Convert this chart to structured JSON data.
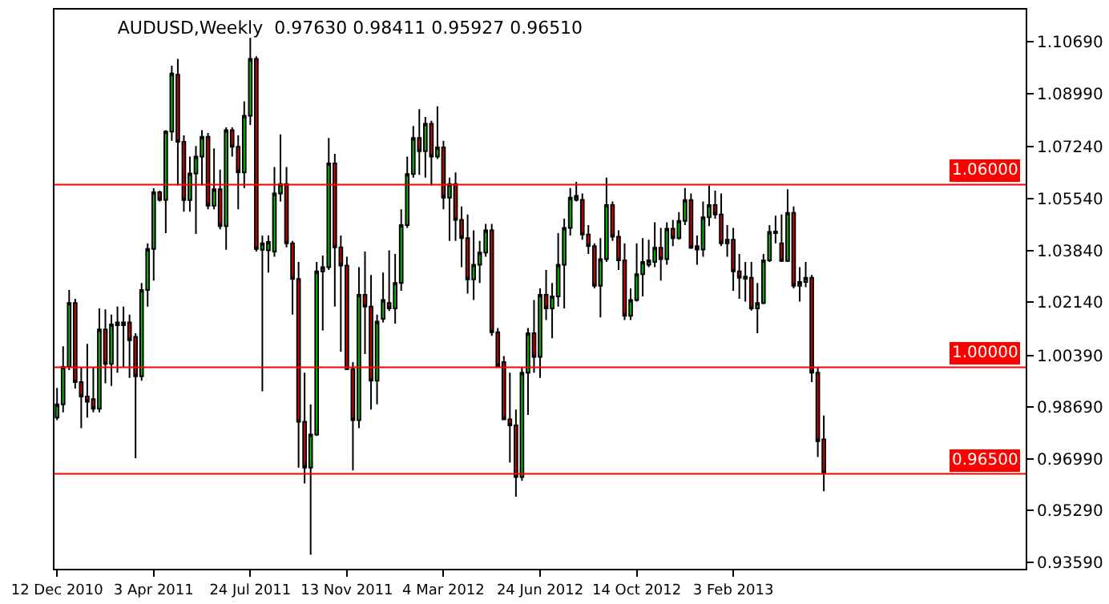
{
  "chart_data": {
    "type": "candlestick",
    "title": "AUDUSD,Weekly  0.97630 0.98411 0.95927 0.96510",
    "x": [
      "2010-12-12",
      "2010-12-19",
      "2010-12-26",
      "2011-01-02",
      "2011-01-09",
      "2011-01-16",
      "2011-01-23",
      "2011-01-30",
      "2011-02-06",
      "2011-02-13",
      "2011-02-20",
      "2011-02-27",
      "2011-03-06",
      "2011-03-13",
      "2011-03-20",
      "2011-03-27",
      "2011-04-03",
      "2011-04-10",
      "2011-04-17",
      "2011-04-24",
      "2011-05-01",
      "2011-05-08",
      "2011-05-15",
      "2011-05-22",
      "2011-05-29",
      "2011-06-05",
      "2011-06-12",
      "2011-06-19",
      "2011-06-26",
      "2011-07-03",
      "2011-07-10",
      "2011-07-17",
      "2011-07-24",
      "2011-07-31",
      "2011-08-07",
      "2011-08-14",
      "2011-08-21",
      "2011-08-28",
      "2011-09-04",
      "2011-09-11",
      "2011-09-18",
      "2011-09-25",
      "2011-10-02",
      "2011-10-09",
      "2011-10-16",
      "2011-10-23",
      "2011-10-30",
      "2011-11-06",
      "2011-11-13",
      "2011-11-20",
      "2011-11-27",
      "2011-12-04",
      "2011-12-11",
      "2011-12-18",
      "2011-12-25",
      "2012-01-01",
      "2012-01-08",
      "2012-01-15",
      "2012-01-22",
      "2012-01-29",
      "2012-02-05",
      "2012-02-12",
      "2012-02-19",
      "2012-02-26",
      "2012-03-04",
      "2012-03-11",
      "2012-03-18",
      "2012-03-25",
      "2012-04-01",
      "2012-04-08",
      "2012-04-15",
      "2012-04-22",
      "2012-04-29",
      "2012-05-06",
      "2012-05-13",
      "2012-05-20",
      "2012-05-27",
      "2012-06-03",
      "2012-06-10",
      "2012-06-17",
      "2012-06-24",
      "2012-07-01",
      "2012-07-08",
      "2012-07-15",
      "2012-07-22",
      "2012-07-29",
      "2012-08-05",
      "2012-08-12",
      "2012-08-19",
      "2012-08-26",
      "2012-09-02",
      "2012-09-09",
      "2012-09-16",
      "2012-09-23",
      "2012-09-30",
      "2012-10-07",
      "2012-10-14",
      "2012-10-21",
      "2012-10-28",
      "2012-11-04",
      "2012-11-11",
      "2012-11-18",
      "2012-11-25",
      "2012-12-02",
      "2012-12-09",
      "2012-12-16",
      "2012-12-23",
      "2012-12-30",
      "2013-01-06",
      "2013-01-13",
      "2013-01-20",
      "2013-01-27",
      "2013-02-03",
      "2013-02-10",
      "2013-02-17",
      "2013-02-24",
      "2013-03-03",
      "2013-03-10",
      "2013-03-17",
      "2013-03-24",
      "2013-03-31",
      "2013-04-07",
      "2013-04-14",
      "2013-04-21",
      "2013-04-28",
      "2013-05-05",
      "2013-05-12",
      "2013-05-19"
    ],
    "ohlc": [
      [
        0.9835,
        0.9932,
        0.9826,
        0.9878
      ],
      [
        0.9878,
        1.0069,
        0.9852,
        1.0001
      ],
      [
        1.0001,
        1.0254,
        0.9991,
        1.0211
      ],
      [
        1.0211,
        1.0225,
        0.993,
        0.9951
      ],
      [
        0.9951,
        1.0001,
        0.98,
        0.9904
      ],
      [
        0.9904,
        1.0077,
        0.9835,
        0.9887
      ],
      [
        0.9895,
        1.0001,
        0.9852,
        0.9864
      ],
      [
        0.9864,
        1.0193,
        0.9852,
        1.0124
      ],
      [
        1.0124,
        1.019,
        0.9947,
        1.0011
      ],
      [
        1.0011,
        1.0173,
        0.9939,
        1.0141
      ],
      [
        1.0138,
        1.0199,
        0.9982,
        1.0147
      ],
      [
        1.0147,
        1.0199,
        1.0001,
        1.0138
      ],
      [
        1.0147,
        1.0173,
        0.9965,
        1.0089
      ],
      [
        1.01,
        1.0112,
        0.9701,
        0.997
      ],
      [
        0.997,
        1.0277,
        0.9956,
        1.0254
      ],
      [
        1.0254,
        1.0407,
        1.0199,
        1.0389
      ],
      [
        1.0389,
        1.0588,
        1.0285,
        1.0575
      ],
      [
        1.0575,
        1.058,
        1.0545,
        1.055
      ],
      [
        1.055,
        1.0779,
        1.0441,
        1.0774
      ],
      [
        1.0774,
        1.0991,
        1.0744,
        1.0965
      ],
      [
        1.0961,
        1.1013,
        1.0597,
        1.0741
      ],
      [
        1.0741,
        1.0762,
        1.0511,
        1.0549
      ],
      [
        1.0549,
        1.0692,
        1.0511,
        1.0637
      ],
      [
        1.0637,
        1.0727,
        1.0438,
        1.0692
      ],
      [
        1.0692,
        1.0779,
        1.0597,
        1.0757
      ],
      [
        1.0757,
        1.077,
        1.0519,
        1.0531
      ],
      [
        1.0531,
        1.0719,
        1.0519,
        1.0585
      ],
      [
        1.0585,
        1.0649,
        1.0453,
        1.0464
      ],
      [
        1.0464,
        1.0788,
        1.0386,
        1.0779
      ],
      [
        1.0779,
        1.0788,
        1.0692,
        1.0724
      ],
      [
        1.0724,
        1.0762,
        1.0519,
        1.064
      ],
      [
        1.064,
        1.0874,
        1.0589,
        1.0826
      ],
      [
        1.0826,
        1.1082,
        1.0796,
        1.1013
      ],
      [
        1.1013,
        1.1022,
        1.038,
        1.0389
      ],
      [
        1.0386,
        1.0433,
        0.9921,
        1.0407
      ],
      [
        1.0384,
        1.0433,
        1.0311,
        1.0412
      ],
      [
        1.038,
        1.0658,
        1.0363,
        1.0571
      ],
      [
        1.0571,
        1.0765,
        1.0545,
        1.0602
      ],
      [
        1.0602,
        1.0658,
        1.0394,
        1.0407
      ],
      [
        1.0407,
        1.0415,
        1.0173,
        1.029
      ],
      [
        1.029,
        1.0346,
        0.967,
        0.9821
      ],
      [
        0.9821,
        0.9982,
        0.9618,
        0.967
      ],
      [
        0.967,
        0.9878,
        0.9384,
        0.9779
      ],
      [
        0.9779,
        1.0346,
        0.9774,
        1.0315
      ],
      [
        1.0315,
        1.0367,
        1.0121,
        1.0329
      ],
      [
        1.0329,
        1.0753,
        1.032,
        1.067
      ],
      [
        1.067,
        1.0701,
        1.0199,
        1.0394
      ],
      [
        1.0394,
        1.0433,
        1.0051,
        1.0334
      ],
      [
        1.0334,
        1.0363,
        0.9991,
        0.9994
      ],
      [
        0.9994,
        1.0017,
        0.9661,
        0.9826
      ],
      [
        0.9826,
        1.0329,
        0.98,
        1.0238
      ],
      [
        1.0238,
        1.038,
        1.0043,
        1.0199
      ],
      [
        1.0199,
        1.0303,
        0.9861,
        0.9956
      ],
      [
        0.9956,
        1.0173,
        0.9878,
        1.015
      ],
      [
        1.0159,
        1.0311,
        1.0147,
        1.0221
      ],
      [
        1.0211,
        1.0384,
        1.0185,
        1.0193
      ],
      [
        1.0193,
        1.0372,
        1.0143,
        1.0277
      ],
      [
        1.0277,
        1.0519,
        1.0251,
        1.0467
      ],
      [
        1.0467,
        1.0692,
        1.0458,
        1.0635
      ],
      [
        1.0635,
        1.0793,
        1.0623,
        1.0753
      ],
      [
        1.0753,
        1.0848,
        1.0632,
        1.071
      ],
      [
        1.071,
        1.0822,
        1.0623,
        1.08
      ],
      [
        1.08,
        1.081,
        1.0597,
        1.0692
      ],
      [
        1.0692,
        1.0857,
        1.0684,
        1.0722
      ],
      [
        1.0722,
        1.0744,
        1.0519,
        1.0557
      ],
      [
        1.0557,
        1.0623,
        1.0415,
        1.0602
      ],
      [
        1.0602,
        1.064,
        1.0415,
        1.0484
      ],
      [
        1.0484,
        1.0528,
        1.0329,
        1.0424
      ],
      [
        1.0424,
        1.0502,
        1.0242,
        1.0289
      ],
      [
        1.0289,
        1.045,
        1.0221,
        1.0337
      ],
      [
        1.0337,
        1.0415,
        1.0277,
        1.0377
      ],
      [
        1.0377,
        1.0471,
        1.0363,
        1.045
      ],
      [
        1.045,
        1.0471,
        1.0103,
        1.0115
      ],
      [
        1.0115,
        1.0129,
        0.9999,
        1.0003
      ],
      [
        1.0017,
        1.0037,
        0.9826,
        0.9829
      ],
      [
        0.9829,
        0.9982,
        0.9687,
        0.9809
      ],
      [
        0.9809,
        0.9861,
        0.9575,
        0.9639
      ],
      [
        0.9639,
        1.0001,
        0.9627,
        0.9982
      ],
      [
        0.9982,
        1.0129,
        0.9843,
        1.0112
      ],
      [
        1.0112,
        1.0221,
        0.9982,
        1.0034
      ],
      [
        1.0034,
        1.0259,
        0.9965,
        1.0238
      ],
      [
        1.0238,
        1.032,
        1.0155,
        1.0193
      ],
      [
        1.0193,
        1.0277,
        1.0095,
        1.0233
      ],
      [
        1.0233,
        1.0441,
        1.0199,
        1.0337
      ],
      [
        1.0337,
        1.0488,
        1.0193,
        1.0458
      ],
      [
        1.0458,
        1.0589,
        1.0433,
        1.0557
      ],
      [
        1.055,
        1.0609,
        1.0545,
        1.0563
      ],
      [
        1.055,
        1.0571,
        1.0419,
        1.0436
      ],
      [
        1.0436,
        1.0467,
        1.0372,
        1.0398
      ],
      [
        1.0398,
        1.0407,
        1.0259,
        1.0268
      ],
      [
        1.0268,
        1.0424,
        1.0164,
        1.0355
      ],
      [
        1.0355,
        1.0623,
        1.0346,
        1.0533
      ],
      [
        1.0533,
        1.0545,
        1.0415,
        1.0429
      ],
      [
        1.0429,
        1.045,
        1.032,
        1.0351
      ],
      [
        1.0351,
        1.0407,
        1.0155,
        1.0169
      ],
      [
        1.0169,
        1.0259,
        1.0155,
        1.0221
      ],
      [
        1.0221,
        1.0407,
        1.0216,
        1.0306
      ],
      [
        1.0306,
        1.0424,
        1.0233,
        1.0346
      ],
      [
        1.0337,
        1.0419,
        1.0329,
        1.0351
      ],
      [
        1.0346,
        1.0476,
        1.0329,
        1.0393
      ],
      [
        1.0393,
        1.0458,
        1.0285,
        1.0355
      ],
      [
        1.0355,
        1.0476,
        1.0337,
        1.0455
      ],
      [
        1.0455,
        1.0484,
        1.0398,
        1.0424
      ],
      [
        1.0424,
        1.051,
        1.0419,
        1.0481
      ],
      [
        1.0481,
        1.0589,
        1.0467,
        1.0549
      ],
      [
        1.0549,
        1.0571,
        1.0389,
        1.0393
      ],
      [
        1.0398,
        1.0433,
        1.0337,
        1.0387
      ],
      [
        1.0387,
        1.0545,
        1.0363,
        1.0493
      ],
      [
        1.0493,
        1.0597,
        1.0464,
        1.0533
      ],
      [
        1.0533,
        1.058,
        1.0488,
        1.0502
      ],
      [
        1.0502,
        1.0571,
        1.0398,
        1.0407
      ],
      [
        1.0407,
        1.0467,
        1.0363,
        1.0419
      ],
      [
        1.0419,
        1.0458,
        1.0251,
        1.0315
      ],
      [
        1.0315,
        1.0372,
        1.0225,
        1.0294
      ],
      [
        1.0298,
        1.0346,
        1.0216,
        1.0291
      ],
      [
        1.0294,
        1.0346,
        1.0186,
        1.0193
      ],
      [
        1.0193,
        1.0277,
        1.0112,
        1.0211
      ],
      [
        1.0211,
        1.0372,
        1.0207,
        1.0351
      ],
      [
        1.0351,
        1.0467,
        1.0346,
        1.0445
      ],
      [
        1.0441,
        1.0498,
        1.0407,
        1.0446
      ],
      [
        1.0407,
        1.0502,
        1.0346,
        1.0349
      ],
      [
        1.0349,
        1.0585,
        1.0346,
        1.0507
      ],
      [
        1.0507,
        1.0528,
        1.0259,
        1.0268
      ],
      [
        1.0268,
        1.0329,
        1.0216,
        1.028
      ],
      [
        1.028,
        1.0346,
        1.0263,
        1.0294
      ],
      [
        1.0294,
        1.0303,
        0.9951,
        0.9982
      ],
      [
        0.9982,
        1.0001,
        0.9705,
        0.9757
      ],
      [
        0.9763,
        0.98411,
        0.95927,
        0.9651
      ]
    ],
    "xlim": [
      "2010-12-09",
      "2014-01-08"
    ],
    "xticks": [
      {
        "value": "2010-12-12",
        "label": "12 Dec 2010"
      },
      {
        "value": "2011-04-03",
        "label": "3 Apr 2011"
      },
      {
        "value": "2011-07-24",
        "label": "24 Jul 2011"
      },
      {
        "value": "2011-11-13",
        "label": "13 Nov 2011"
      },
      {
        "value": "2012-03-04",
        "label": "4 Mar 2012"
      },
      {
        "value": "2012-06-24",
        "label": "24 Jun 2012"
      },
      {
        "value": "2012-10-14",
        "label": "14 Oct 2012"
      },
      {
        "value": "2013-02-03",
        "label": "3 Feb 2013"
      }
    ],
    "ylim": [
      0.9338,
      1.1175
    ],
    "yticks": [
      {
        "value": 1.1069,
        "label": "1.10690"
      },
      {
        "value": 1.0899,
        "label": "1.08990"
      },
      {
        "value": 1.0724,
        "label": "1.07240"
      },
      {
        "value": 1.0554,
        "label": "1.05540"
      },
      {
        "value": 1.0384,
        "label": "1.03840"
      },
      {
        "value": 1.0214,
        "label": "1.02140"
      },
      {
        "value": 1.0039,
        "label": "1.00390"
      },
      {
        "value": 0.9869,
        "label": "0.98690"
      },
      {
        "value": 0.9699,
        "label": "0.96990"
      },
      {
        "value": 0.9529,
        "label": "0.95290"
      },
      {
        "value": 0.9359,
        "label": "0.93590"
      }
    ],
    "ref_lines": [
      {
        "axis": "y",
        "value": 1.06,
        "label": "1.06000",
        "color": "#ff0000"
      },
      {
        "axis": "y",
        "value": 1.0,
        "label": "1.00000",
        "color": "#ff0000"
      },
      {
        "axis": "y",
        "value": 0.965,
        "label": "0.96500",
        "color": "#ff0000"
      }
    ],
    "grid": false
  }
}
